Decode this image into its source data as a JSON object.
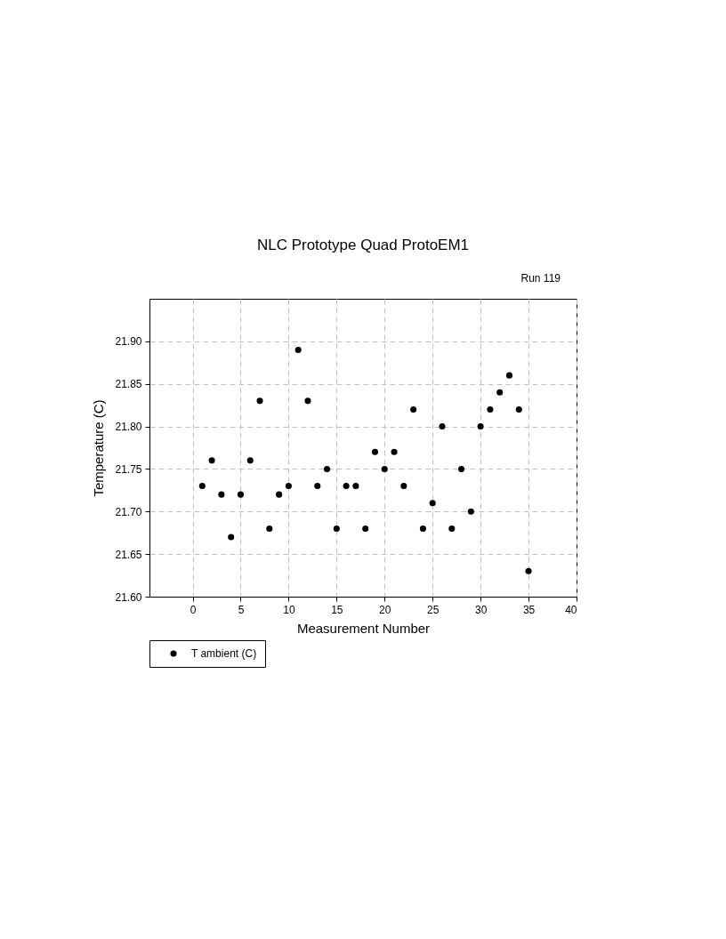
{
  "chart_data": {
    "type": "scatter",
    "title": "NLC Prototype Quad ProtoEM1",
    "xlabel": "Measurement Number",
    "ylabel": "Temperature (C)",
    "annotations": [
      "Run 119"
    ],
    "x": [
      1,
      2,
      3,
      4,
      5,
      6,
      7,
      8,
      9,
      10,
      11,
      12,
      13,
      14,
      15,
      16,
      17,
      18,
      19,
      20,
      21,
      22,
      23,
      24,
      25,
      26,
      27,
      28,
      29,
      30,
      31,
      32,
      33,
      34,
      35
    ],
    "series": [
      {
        "name": "T ambient (C)",
        "color": "#000000",
        "values": [
          21.73,
          21.76,
          21.72,
          21.67,
          21.72,
          21.76,
          21.83,
          21.68,
          21.72,
          21.73,
          21.89,
          21.83,
          21.73,
          21.75,
          21.68,
          21.73,
          21.73,
          21.68,
          21.77,
          21.75,
          21.77,
          21.73,
          21.82,
          21.68,
          21.71,
          21.8,
          21.68,
          21.75,
          21.7,
          21.8,
          21.82,
          21.84,
          21.86,
          21.82,
          21.63
        ]
      }
    ],
    "xlim": [
      -4.5,
      40
    ],
    "xticks": [
      0,
      5,
      10,
      15,
      20,
      25,
      30,
      35,
      40
    ],
    "ylim": [
      21.6,
      21.95
    ],
    "yticks": [
      {
        "value": 21.6,
        "label": "21.60"
      },
      {
        "value": 21.65,
        "label": "21.65"
      },
      {
        "value": 21.7,
        "label": "21.70"
      },
      {
        "value": 21.75,
        "label": "21.75"
      },
      {
        "value": 21.8,
        "label": "21.80"
      },
      {
        "value": 21.85,
        "label": "21.85"
      },
      {
        "value": 21.9,
        "label": "21.90"
      }
    ],
    "grid": true,
    "line_style": "dashed",
    "marker": "circle",
    "legend": "bottom left"
  }
}
